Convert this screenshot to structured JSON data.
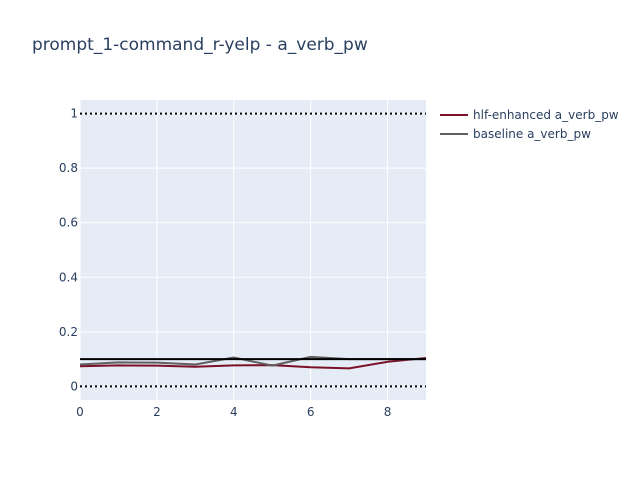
{
  "chart_data": {
    "type": "line",
    "title": "prompt_1-command_r-yelp - a_verb_pw",
    "xlabel": "",
    "ylabel": "",
    "xlim": [
      0,
      9
    ],
    "ylim": [
      -0.05,
      1.05
    ],
    "x_ticks": [
      0,
      2,
      4,
      6,
      8
    ],
    "y_ticks": [
      0,
      0.2,
      0.4,
      0.6,
      0.8,
      1
    ],
    "x_tick_labels": [
      "0",
      "2",
      "4",
      "6",
      "8"
    ],
    "y_tick_labels": [
      "0",
      "0.2",
      "0.4",
      "0.6",
      "0.8",
      "1"
    ],
    "grid": true,
    "legend_position": "top-right",
    "x": [
      0,
      1,
      2,
      3,
      4,
      5,
      6,
      7,
      8,
      9
    ],
    "series": [
      {
        "name": "hlf-enhanced a_verb_pw",
        "color": "#7b1026",
        "values": [
          0.074,
          0.077,
          0.076,
          0.072,
          0.077,
          0.078,
          0.07,
          0.066,
          0.09,
          0.104
        ]
      },
      {
        "name": "baseline a_verb_pw",
        "color": "#5f5f5f",
        "values": [
          0.08,
          0.088,
          0.087,
          0.08,
          0.106,
          0.076,
          0.108,
          0.1,
          0.1,
          0.1
        ]
      }
    ],
    "reference_lines": [
      {
        "y": 1,
        "style": "dotted",
        "color": "#000000"
      },
      {
        "y": 0,
        "style": "dotted",
        "color": "#000000"
      },
      {
        "y": 0.1,
        "style": "solid",
        "color": "#000000"
      }
    ]
  }
}
